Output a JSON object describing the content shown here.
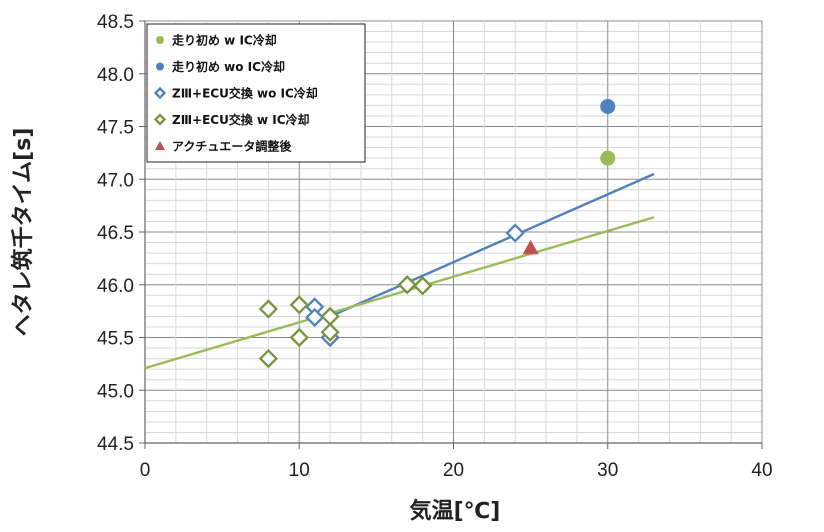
{
  "chart_data": {
    "type": "scatter",
    "xlabel": "気温[℃]",
    "ylabel": "ヘタレ筑千タイム[s]",
    "xlim": [
      0,
      40
    ],
    "ylim": [
      44.5,
      48.5
    ],
    "x_ticks": [
      0,
      10,
      20,
      30,
      40
    ],
    "y_ticks": [
      44.5,
      45.0,
      45.5,
      46.0,
      46.5,
      47.0,
      47.5,
      48.0,
      48.5
    ],
    "x_tick_labels": [
      "0",
      "10",
      "20",
      "30",
      "40"
    ],
    "y_tick_labels": [
      "44.5",
      "45.0",
      "45.5",
      "46.0",
      "46.5",
      "47.0",
      "47.5",
      "48.0",
      "48.5"
    ],
    "grid": true,
    "legend_position": "top-left",
    "series": [
      {
        "name": "走り初め w IC冷却",
        "marker": "circle-filled",
        "color": "#9bbb59",
        "points": [
          [
            30,
            47.2
          ]
        ]
      },
      {
        "name": "走り初め wo IC冷却",
        "marker": "circle-filled",
        "color": "#4f81bd",
        "points": [
          [
            30,
            47.69
          ]
        ]
      },
      {
        "name": "ZⅢ+ECU交換 wo IC冷却",
        "marker": "diamond-open",
        "color": "#4f81bd",
        "points": [
          [
            11,
            45.79
          ],
          [
            11,
            45.69
          ],
          [
            12,
            45.5
          ],
          [
            24,
            46.49
          ]
        ],
        "trendline": {
          "x": [
            12,
            33
          ],
          "y": [
            45.7,
            47.05
          ]
        }
      },
      {
        "name": "ZⅢ+ECU交換 w IC冷却",
        "marker": "diamond-open",
        "color": "#77933c",
        "points": [
          [
            8,
            45.77
          ],
          [
            8,
            45.3
          ],
          [
            10,
            45.81
          ],
          [
            10,
            45.5
          ],
          [
            12,
            45.7
          ],
          [
            12,
            45.55
          ],
          [
            17,
            46.0
          ],
          [
            18,
            45.99
          ]
        ],
        "trendline": {
          "x": [
            0,
            33
          ],
          "y": [
            45.21,
            46.64
          ]
        }
      },
      {
        "name": "アクチュエータ調整後",
        "marker": "triangle-filled",
        "color": "#c0504d",
        "points": [
          [
            25,
            46.35
          ]
        ]
      }
    ]
  }
}
